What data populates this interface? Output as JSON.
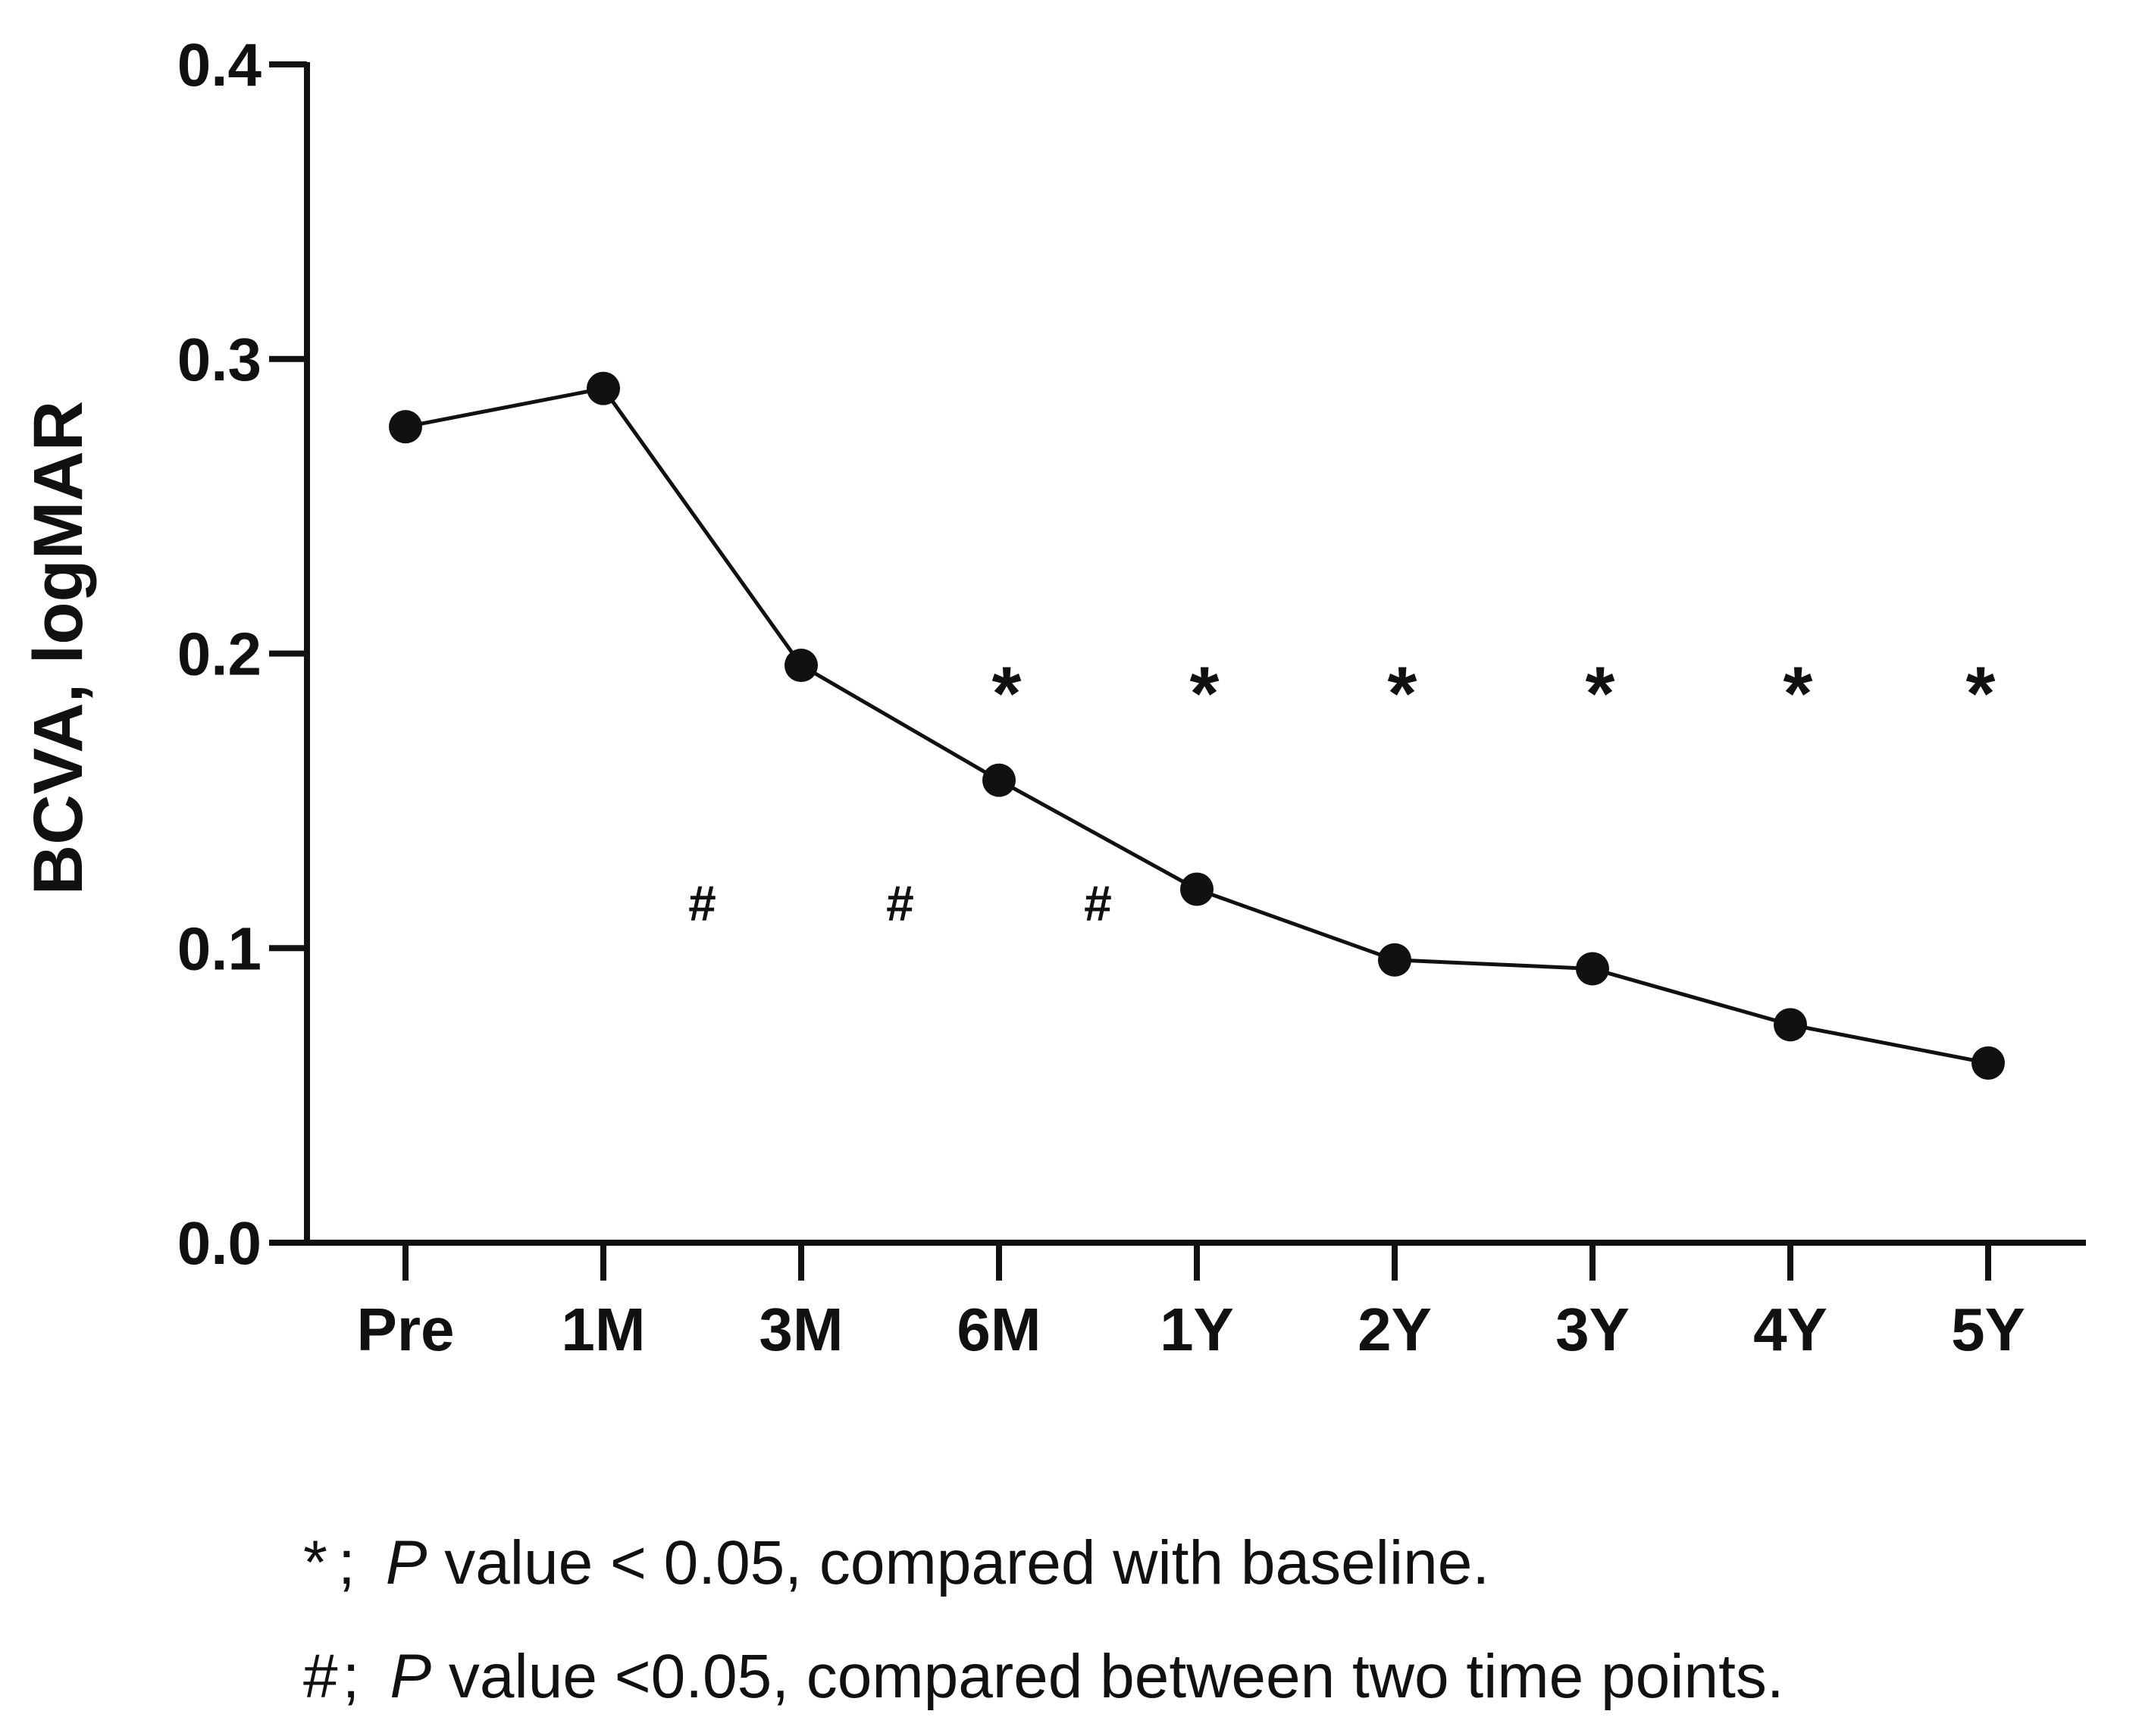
{
  "chart_data": {
    "type": "line",
    "title": "",
    "xlabel": "",
    "ylabel": "BCVA, logMAR",
    "categories": [
      "Pre",
      "1M",
      "3M",
      "6M",
      "1Y",
      "2Y",
      "3Y",
      "4Y",
      "5Y"
    ],
    "series": [
      {
        "name": "BCVA",
        "values": [
          0.277,
          0.29,
          0.196,
          0.157,
          0.12,
          0.096,
          0.093,
          0.074,
          0.061
        ]
      }
    ],
    "ylim": [
      0.0,
      0.4
    ],
    "yticks": [
      "0.0",
      "0.1",
      "0.2",
      "0.3",
      "0.4"
    ],
    "grid": false,
    "star_marker": "*",
    "star_categories": [
      "6M",
      "1Y",
      "2Y",
      "3Y",
      "4Y",
      "5Y"
    ],
    "star_value": 0.19,
    "hash_marker": "#",
    "hash_between": [
      [
        "1M",
        "3M"
      ],
      [
        "3M",
        "6M"
      ],
      [
        "6M",
        "1Y"
      ]
    ],
    "hash_value": 0.115,
    "colors": {
      "line": "#111111",
      "marker": "#111111"
    }
  },
  "legend": {
    "star": {
      "symbol": "*",
      "separator": ";",
      "p": "P",
      "text": " value < 0.05, compared with baseline."
    },
    "hash": {
      "symbol": "#",
      "separator": ";",
      "p": "P",
      "text": " value <0.05, compared between two time points."
    }
  }
}
